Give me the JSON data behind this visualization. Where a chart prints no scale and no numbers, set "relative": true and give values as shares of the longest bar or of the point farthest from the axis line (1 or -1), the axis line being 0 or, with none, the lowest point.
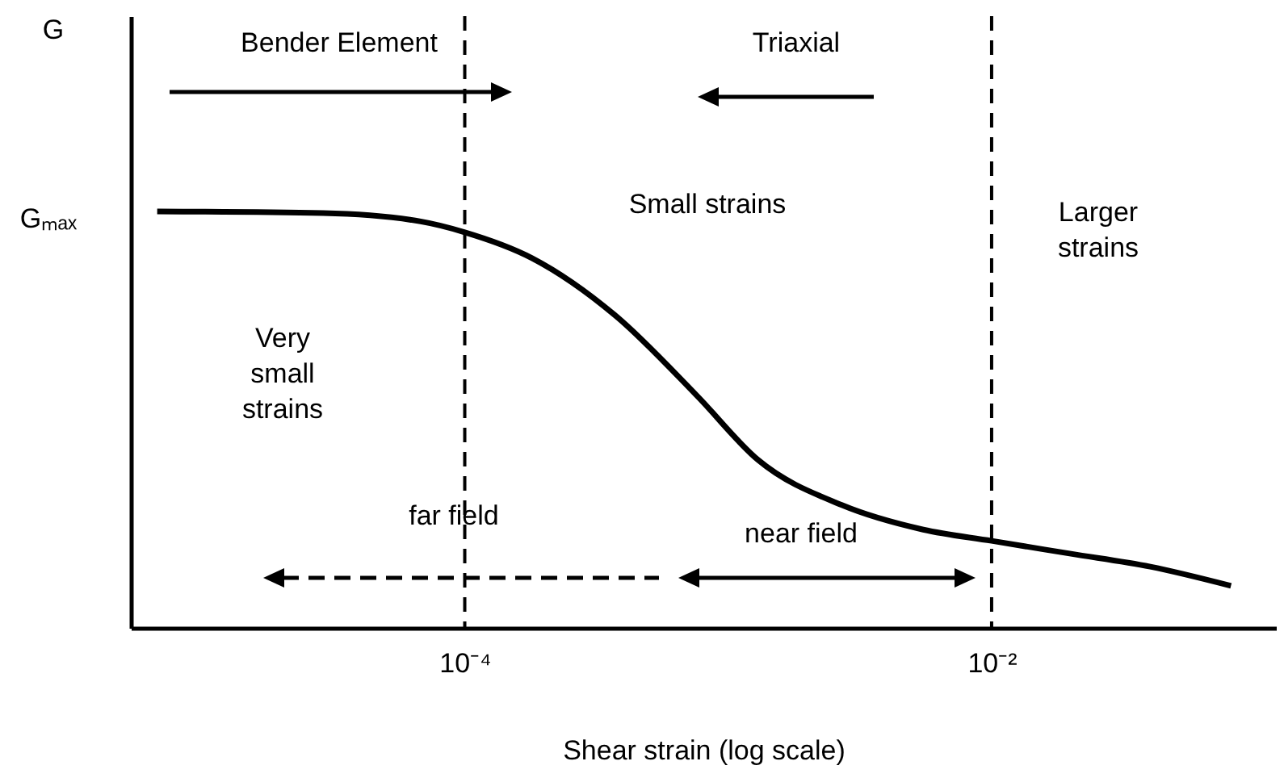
{
  "chart_data": {
    "type": "line",
    "relative": true,
    "log": "x",
    "xlabel": "Shear  strain (log scale)",
    "x": [
      6.8e-06,
      2.9e-05,
      6.8e-05,
      0.0001,
      0.00018,
      0.00037,
      0.00076,
      0.0013,
      0.0027,
      0.0055,
      0.01,
      0.02,
      0.04,
      0.081
    ],
    "series": [
      {
        "color": "#000000",
        "values": [
          1.0,
          0.996,
          0.976,
          0.95,
          0.888,
          0.752,
          0.558,
          0.403,
          0.295,
          0.236,
          0.209,
          0.178,
          0.147,
          0.101
        ]
      }
    ],
    "xlim": [
      5.4e-06,
      0.12
    ],
    "xticks": [
      {
        "value": 0.0001,
        "label": "10⁻⁴"
      },
      {
        "value": 0.01,
        "label": "10⁻²"
      }
    ],
    "ref_lines": [
      {
        "axis": "x",
        "value": 0.0001,
        "color": "#000000",
        "line_style": "dashed"
      },
      {
        "axis": "x",
        "value": 0.01,
        "color": "#000000",
        "line_style": "dashed"
      }
    ],
    "annotations": [
      "Bender Element",
      "Triaxial",
      "Small strains",
      "Larger strains",
      "Very small strains",
      "far field",
      "near field",
      "Gₘₐₓ",
      "G"
    ],
    "grid": false,
    "marker": "none",
    "line_style": "solid"
  }
}
